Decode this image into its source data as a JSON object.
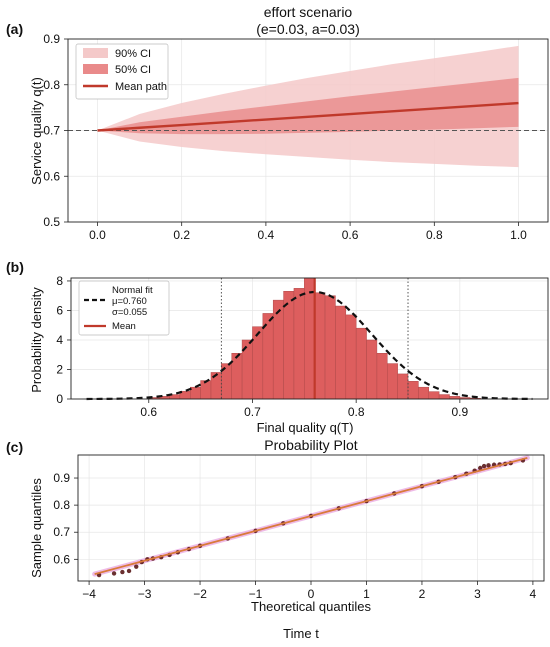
{
  "panel_labels": [
    "(a)",
    "(b)",
    "(c)"
  ],
  "figure_footer": "Time t",
  "colors": {
    "ci90": "#f4c9c9",
    "ci50": "#e98a8a",
    "mean": "#c0392b",
    "bar": "#dd5e5e",
    "bar_edge": "#b04a4a",
    "normal_fit": "#111111",
    "qq_points": "#5a1a1a",
    "qq_line": "#d97a3a",
    "grid": "#e6e6e6"
  },
  "chart_data": [
    {
      "type": "area",
      "panel": "(a)",
      "title": "effort scenario",
      "subtitle": "(e=0.03, a=0.03)",
      "xlabel": "",
      "ylabel": "Service quality q(t)",
      "xlim": [
        -0.07,
        1.07
      ],
      "ylim": [
        0.5,
        0.9
      ],
      "xticks": [
        "0.0",
        "0.2",
        "0.4",
        "0.6",
        "0.8",
        "1.0"
      ],
      "yticks": [
        "0.5",
        "0.6",
        "0.7",
        "0.8",
        "0.9"
      ],
      "x": [
        0,
        0.1,
        0.2,
        0.3,
        0.4,
        0.5,
        0.6,
        0.7,
        0.8,
        0.9,
        1.0
      ],
      "mean": [
        0.7,
        0.706,
        0.712,
        0.718,
        0.724,
        0.73,
        0.736,
        0.742,
        0.748,
        0.754,
        0.76
      ],
      "ci90_low": [
        0.7,
        0.676,
        0.664,
        0.655,
        0.648,
        0.642,
        0.636,
        0.631,
        0.627,
        0.623,
        0.62
      ],
      "ci90_high": [
        0.7,
        0.736,
        0.76,
        0.78,
        0.798,
        0.815,
        0.83,
        0.845,
        0.858,
        0.871,
        0.885
      ],
      "ci50_low": [
        0.7,
        0.694,
        0.692,
        0.692,
        0.693,
        0.695,
        0.697,
        0.7,
        0.702,
        0.705,
        0.708
      ],
      "ci50_high": [
        0.7,
        0.718,
        0.73,
        0.742,
        0.753,
        0.764,
        0.775,
        0.785,
        0.795,
        0.805,
        0.815
      ],
      "reference_line": 0.7,
      "legend": [
        "90% CI",
        "50% CI",
        "Mean path"
      ],
      "legend_position": "top-left",
      "grid": true
    },
    {
      "type": "bar",
      "panel": "(b)",
      "xlabel": "Final quality q(T)",
      "ylabel": "Probability density",
      "xlim": [
        0.525,
        0.985
      ],
      "ylim": [
        0,
        8.2
      ],
      "xticks": [
        "0.6",
        "0.7",
        "0.8",
        "0.9"
      ],
      "yticks": [
        "0",
        "2",
        "4",
        "6",
        "8"
      ],
      "bin_width": 0.01,
      "bin_centers": [
        0.605,
        0.615,
        0.625,
        0.635,
        0.645,
        0.655,
        0.665,
        0.675,
        0.685,
        0.695,
        0.705,
        0.715,
        0.725,
        0.735,
        0.745,
        0.755,
        0.765,
        0.775,
        0.785,
        0.795,
        0.805,
        0.815,
        0.825,
        0.835,
        0.845,
        0.855,
        0.865,
        0.875,
        0.885,
        0.895,
        0.905,
        0.915
      ],
      "densities": [
        0.1,
        0.18,
        0.3,
        0.52,
        0.8,
        1.25,
        1.8,
        2.4,
        3.1,
        4.0,
        4.9,
        5.8,
        6.7,
        7.3,
        7.5,
        8.2,
        7.2,
        7.0,
        6.3,
        5.7,
        4.8,
        4.0,
        3.1,
        2.4,
        1.7,
        1.2,
        0.8,
        0.5,
        0.3,
        0.18,
        0.1,
        0.05
      ],
      "normal_fit": {
        "mu": 0.76,
        "sigma": 0.055,
        "x_range": [
          0.54,
          0.97
        ]
      },
      "mean_value": 0.76,
      "quantile_lines": [
        0.67,
        0.85
      ],
      "legend": {
        "normal_fit_label": "Normal fit",
        "mu_label": "μ=0.760",
        "sigma_label": "σ=0.055",
        "mean_label": "Mean"
      },
      "legend_position": "top-left",
      "grid": true
    },
    {
      "type": "scatter",
      "panel": "(c)",
      "title": "Probability Plot",
      "xlabel": "Theoretical quantiles",
      "ylabel": "Sample quantiles",
      "xlim": [
        -4.2,
        4.2
      ],
      "ylim": [
        0.52,
        0.985
      ],
      "xticks": [
        "−4",
        "−3",
        "−2",
        "−1",
        "0",
        "1",
        "2",
        "3",
        "4"
      ],
      "yticks": [
        "0.6",
        "0.7",
        "0.8",
        "0.9"
      ],
      "fit_line": {
        "intercept": 0.76,
        "slope": 0.055,
        "x_range": [
          -3.9,
          3.9
        ]
      },
      "points": [
        [
          -3.82,
          0.542
        ],
        [
          -3.55,
          0.548
        ],
        [
          -3.4,
          0.553
        ],
        [
          -3.28,
          0.557
        ],
        [
          -3.15,
          0.573
        ],
        [
          -3.05,
          0.59
        ],
        [
          -2.95,
          0.6
        ],
        [
          -2.85,
          0.603
        ],
        [
          -2.7,
          0.608
        ],
        [
          -2.55,
          0.616
        ],
        [
          -2.4,
          0.626
        ],
        [
          -2.2,
          0.638
        ],
        [
          -2.0,
          0.65
        ],
        [
          -1.5,
          0.677
        ],
        [
          -1.0,
          0.705
        ],
        [
          -0.5,
          0.733
        ],
        [
          0.0,
          0.76
        ],
        [
          0.5,
          0.788
        ],
        [
          1.0,
          0.815
        ],
        [
          1.5,
          0.843
        ],
        [
          2.0,
          0.87
        ],
        [
          2.3,
          0.886
        ],
        [
          2.6,
          0.903
        ],
        [
          2.8,
          0.916
        ],
        [
          2.95,
          0.927
        ],
        [
          3.05,
          0.937
        ],
        [
          3.12,
          0.944
        ],
        [
          3.2,
          0.947
        ],
        [
          3.3,
          0.949
        ],
        [
          3.4,
          0.95
        ],
        [
          3.5,
          0.952
        ],
        [
          3.6,
          0.955
        ],
        [
          3.82,
          0.965
        ]
      ],
      "grid": true
    }
  ]
}
